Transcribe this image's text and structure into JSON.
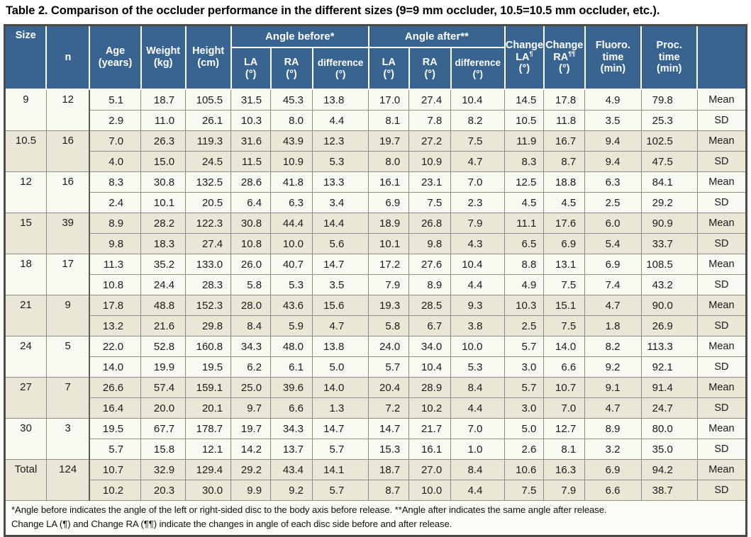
{
  "title": "Table 2. Comparison of the occluder performance in the different sizes (9=9 mm occluder, 10.5=10.5 mm occluder, etc.).",
  "colors": {
    "header_bg": "#38648f",
    "header_text": "#ffffff",
    "row_light": "#faf9f1",
    "row_dark": "#ebe7d7",
    "grid_line": "#8e8e86",
    "group_line": "#75756c",
    "divider_dark": "#5e5e57",
    "outer_border": "#4b4b46",
    "footnote_bg": "#fcfbf6",
    "title_color": "#000000"
  },
  "header": {
    "size": "Size",
    "n": "n",
    "age": [
      "Age",
      "(years)"
    ],
    "weight": [
      "Weight",
      "(kg)"
    ],
    "height": [
      "Height",
      "(cm)"
    ],
    "angle_before": "Angle before*",
    "angle_after": "Angle after**",
    "la": [
      "LA",
      "(°)"
    ],
    "ra": [
      "RA",
      "(°)"
    ],
    "difference": [
      "difference",
      "(°)"
    ],
    "change_la": [
      "Change",
      "LA",
      "¶",
      "(°)"
    ],
    "change_ra": [
      "Change",
      "RA",
      "¶¶",
      "(°)"
    ],
    "fluoro_time": [
      "Fluoro.",
      "time",
      "(min)"
    ],
    "proc_time": [
      "Proc.",
      "time",
      "(min)"
    ],
    "stat_column": ""
  },
  "stat_labels": {
    "mean": "Mean",
    "sd": "SD"
  },
  "rows": [
    {
      "size": "9",
      "n": "12",
      "mean": [
        "5.1",
        "18.7",
        "105.5",
        "31.5",
        "45.3",
        "13.8",
        "17.0",
        "27.4",
        "10.4",
        "14.5",
        "17.8",
        "4.9",
        "79.8"
      ],
      "sd": [
        "2.9",
        "11.0",
        "26.1",
        "10.3",
        "8.0",
        "4.4",
        "8.1",
        "7.8",
        "8.2",
        "10.5",
        "11.8",
        "3.5",
        "25.3"
      ]
    },
    {
      "size": "10.5",
      "n": "16",
      "mean": [
        "7.0",
        "26.3",
        "119.3",
        "31.6",
        "43.9",
        "12.3",
        "19.7",
        "27.2",
        "7.5",
        "11.9",
        "16.7",
        "9.4",
        "102.5"
      ],
      "sd": [
        "4.0",
        "15.0",
        "24.5",
        "11.5",
        "10.9",
        "5.3",
        "8.0",
        "10.9",
        "4.7",
        "8.3",
        "8.7",
        "9.4",
        "47.5"
      ]
    },
    {
      "size": "12",
      "n": "16",
      "mean": [
        "8.3",
        "30.8",
        "132.5",
        "28.6",
        "41.8",
        "13.3",
        "16.1",
        "23.1",
        "7.0",
        "12.5",
        "18.8",
        "6.3",
        "84.1"
      ],
      "sd": [
        "2.4",
        "10.1",
        "20.5",
        "6.4",
        "6.3",
        "3.4",
        "6.9",
        "7.5",
        "2.3",
        "4.5",
        "4.5",
        "2.5",
        "29.2"
      ]
    },
    {
      "size": "15",
      "n": "39",
      "mean": [
        "8.9",
        "28.2",
        "122.3",
        "30.8",
        "44.4",
        "14.4",
        "18.9",
        "26.8",
        "7.9",
        "11.1",
        "17.6",
        "6.0",
        "90.9"
      ],
      "sd": [
        "9.8",
        "18.3",
        "27.4",
        "10.8",
        "10.0",
        "5.6",
        "10.1",
        "9.8",
        "4.3",
        "6.5",
        "6.9",
        "5.4",
        "33.7"
      ]
    },
    {
      "size": "18",
      "n": "17",
      "mean": [
        "11.3",
        "35.2",
        "133.0",
        "26.0",
        "40.7",
        "14.7",
        "17.2",
        "27.6",
        "10.4",
        "8.8",
        "13.1",
        "6.9",
        "108.5"
      ],
      "sd": [
        "10.8",
        "24.4",
        "28.3",
        "5.8",
        "5.3",
        "3.5",
        "7.9",
        "8.9",
        "4.4",
        "4.9",
        "7.5",
        "7.4",
        "43.2"
      ]
    },
    {
      "size": "21",
      "n": "9",
      "mean": [
        "17.8",
        "48.8",
        "152.3",
        "28.0",
        "43.6",
        "15.6",
        "19.3",
        "28.5",
        "9.3",
        "10.3",
        "15.1",
        "4.7",
        "90.0"
      ],
      "sd": [
        "13.2",
        "21.6",
        "29.8",
        "8.4",
        "5.9",
        "4.7",
        "5.8",
        "6.7",
        "3.8",
        "2.5",
        "7.5",
        "1.8",
        "26.9"
      ]
    },
    {
      "size": "24",
      "n": "5",
      "mean": [
        "22.0",
        "52.8",
        "160.8",
        "34.3",
        "48.0",
        "13.8",
        "24.0",
        "34.0",
        "10.0",
        "5.7",
        "14.0",
        "8.2",
        "113.3"
      ],
      "sd": [
        "14.0",
        "19.9",
        "19.5",
        "6.2",
        "6.1",
        "5.0",
        "5.7",
        "10.4",
        "5.3",
        "3.0",
        "6.6",
        "9.2",
        "92.1"
      ]
    },
    {
      "size": "27",
      "n": "7",
      "mean": [
        "26.6",
        "57.4",
        "159.1",
        "25.0",
        "39.6",
        "14.0",
        "20.4",
        "28.9",
        "8.4",
        "5.7",
        "10.7",
        "9.1",
        "91.4"
      ],
      "sd": [
        "16.4",
        "20.0",
        "20.1",
        "9.7",
        "6.6",
        "1.3",
        "7.2",
        "10.2",
        "4.4",
        "3.0",
        "7.0",
        "4.7",
        "24.7"
      ]
    },
    {
      "size": "30",
      "n": "3",
      "mean": [
        "19.5",
        "67.7",
        "178.7",
        "19.7",
        "34.3",
        "14.7",
        "14.7",
        "21.7",
        "7.0",
        "5.0",
        "12.7",
        "8.9",
        "80.0"
      ],
      "sd": [
        "5.7",
        "15.8",
        "12.1",
        "14.2",
        "13.7",
        "5.7",
        "15.3",
        "16.1",
        "1.0",
        "2.6",
        "8.1",
        "3.2",
        "35.0"
      ]
    },
    {
      "size": "Total",
      "n": "124",
      "mean": [
        "10.7",
        "32.9",
        "129.4",
        "29.2",
        "43.4",
        "14.1",
        "18.7",
        "27.0",
        "8.4",
        "10.6",
        "16.3",
        "6.9",
        "94.2"
      ],
      "sd": [
        "10.2",
        "20.3",
        "30.0",
        "9.9",
        "9.2",
        "5.7",
        "8.7",
        "10.0",
        "4.4",
        "7.5",
        "7.9",
        "6.6",
        "38.7"
      ]
    }
  ],
  "footnote": [
    "*Angle before indicates the angle of the left or right-sided disc to the body axis before release. **Angle after indicates the same angle after release.",
    "Change LA (¶) and Change RA (¶¶) indicate the changes in angle of each disc side before and after release."
  ]
}
